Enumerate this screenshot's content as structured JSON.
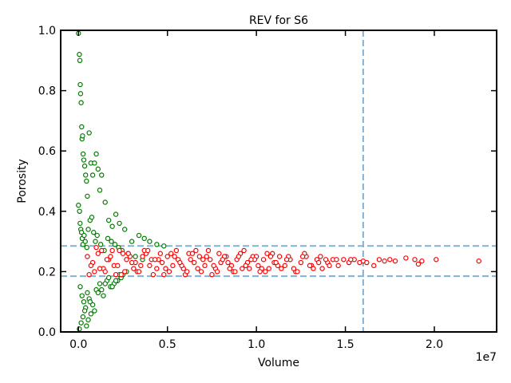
{
  "chart_data": {
    "type": "scatter",
    "title": "REV for S6",
    "xlabel": "Volume",
    "ylabel": "Porosity",
    "x_offset_label": "1e7",
    "x_scale": 10000000,
    "xlim": [
      -1000000,
      23500000
    ],
    "ylim": [
      0.0,
      1.0
    ],
    "xticks": [
      0.0,
      0.5,
      1.0,
      1.5,
      2.0
    ],
    "xtick_labels": [
      "0.0",
      "0.5",
      "1.0",
      "1.5",
      "2.0"
    ],
    "yticks": [
      0.0,
      0.2,
      0.4,
      0.6,
      0.8,
      1.0
    ],
    "ytick_labels": [
      "0.0",
      "0.2",
      "0.4",
      "0.6",
      "0.8",
      "1.0"
    ],
    "grid": false,
    "reference_lines": {
      "color": "#7fb3d5",
      "horizontal": [
        0.285,
        0.185
      ],
      "vertical": [
        16000000
      ]
    },
    "series": [
      {
        "color": "#007a00",
        "marker": "open-circle",
        "x": [
          0,
          50000,
          80000,
          100000,
          120000,
          150000,
          180000,
          200000,
          230000,
          260000,
          300000,
          350000,
          400000,
          450000,
          500000,
          600000,
          700000,
          800000,
          900000,
          1000000,
          1100000,
          1200000,
          1300000,
          1500000,
          1700000,
          1900000,
          2100000,
          2300000,
          2600000,
          3000000,
          3400000,
          3700000,
          4000000,
          4400000,
          4800000,
          0,
          60000,
          90000,
          130000,
          170000,
          210000,
          250000,
          320000,
          380000,
          470000,
          550000,
          650000,
          750000,
          850000,
          950000,
          1050000,
          1250000,
          1450000,
          1650000,
          1850000,
          2050000,
          2250000,
          2450000,
          2800000,
          3200000,
          3600000,
          100000,
          200000,
          300000,
          400000,
          500000,
          600000,
          700000,
          800000,
          1000000,
          1200000,
          1400000,
          1600000,
          1800000,
          2000000,
          2200000,
          2400000,
          50000,
          150000,
          250000,
          350000,
          450000,
          550000,
          650000,
          900000,
          1100000,
          1300000,
          1500000,
          1700000,
          1900000,
          2100000,
          2300000,
          2500000,
          2700000
        ],
        "y": [
          0.99,
          0.92,
          0.9,
          0.82,
          0.79,
          0.76,
          0.68,
          0.64,
          0.65,
          0.59,
          0.57,
          0.55,
          0.52,
          0.5,
          0.45,
          0.66,
          0.56,
          0.52,
          0.56,
          0.59,
          0.54,
          0.47,
          0.52,
          0.43,
          0.37,
          0.35,
          0.39,
          0.36,
          0.34,
          0.3,
          0.32,
          0.31,
          0.3,
          0.29,
          0.285,
          0.42,
          0.4,
          0.36,
          0.34,
          0.33,
          0.31,
          0.29,
          0.32,
          0.3,
          0.28,
          0.34,
          0.37,
          0.38,
          0.33,
          0.3,
          0.32,
          0.29,
          0.27,
          0.31,
          0.3,
          0.29,
          0.28,
          0.27,
          0.26,
          0.25,
          0.24,
          0.15,
          0.12,
          0.1,
          0.08,
          0.13,
          0.11,
          0.06,
          0.09,
          0.14,
          0.16,
          0.12,
          0.17,
          0.15,
          0.16,
          0.17,
          0.18,
          0.01,
          0.03,
          0.05,
          0.07,
          0.02,
          0.04,
          0.1,
          0.07,
          0.13,
          0.14,
          0.16,
          0.18,
          0.15,
          0.17,
          0.19,
          0.19,
          0.2
        ]
      },
      {
        "color": "#ff0000",
        "marker": "open-circle",
        "x": [
          500000,
          800000,
          1100000,
          1400000,
          1700000,
          2000000,
          2300000,
          2600000,
          2900000,
          3200000,
          3500000,
          3800000,
          4100000,
          4400000,
          4700000,
          5000000,
          5300000,
          5600000,
          5900000,
          6200000,
          6500000,
          6800000,
          7100000,
          7400000,
          7700000,
          8000000,
          8300000,
          8600000,
          8900000,
          9200000,
          9500000,
          9800000,
          10100000,
          10400000,
          10700000,
          11000000,
          11300000,
          11600000,
          11900000,
          12200000,
          12500000,
          12800000,
          13100000,
          13400000,
          13700000,
          14000000,
          14300000,
          14600000,
          14900000,
          15200000,
          15500000,
          15800000,
          16000000,
          16600000,
          16900000,
          17200000,
          17500000,
          17800000,
          18400000,
          18900000,
          19100000,
          19300000,
          20100000,
          22500000,
          600000,
          1000000,
          1500000,
          1900000,
          2400000,
          2800000,
          3300000,
          3700000,
          4200000,
          4600000,
          5100000,
          5500000,
          6000000,
          6400000,
          6900000,
          7300000,
          7800000,
          8200000,
          8700000,
          9100000,
          9600000,
          10000000,
          10500000,
          10900000,
          11400000,
          11800000,
          12300000,
          12700000,
          13200000,
          13600000,
          14100000,
          14500000,
          700000,
          1200000,
          1800000,
          2200000,
          2700000,
          3100000,
          3600000,
          4000000,
          4500000,
          4900000,
          5400000,
          5800000,
          6300000,
          6700000,
          7200000,
          7600000,
          8100000,
          8500000,
          9000000,
          9400000,
          9900000,
          10300000,
          10800000,
          11200000,
          11700000,
          12100000,
          12600000,
          13000000,
          13500000,
          13900000,
          15300000,
          16200000,
          900000,
          1300000,
          1600000,
          2100000,
          2500000,
          3000000,
          3400000,
          3900000,
          4300000,
          4800000,
          5200000,
          5700000,
          6100000,
          6600000,
          7000000,
          7500000,
          7900000,
          8400000,
          8800000,
          9300000,
          9700000,
          10200000,
          10600000,
          11100000
        ],
        "y": [
          0.25,
          0.23,
          0.26,
          0.21,
          0.24,
          0.22,
          0.27,
          0.2,
          0.25,
          0.23,
          0.22,
          0.26,
          0.24,
          0.21,
          0.23,
          0.25,
          0.22,
          0.24,
          0.21,
          0.26,
          0.23,
          0.25,
          0.22,
          0.24,
          0.21,
          0.23,
          0.25,
          0.22,
          0.24,
          0.21,
          0.23,
          0.25,
          0.22,
          0.24,
          0.21,
          0.23,
          0.25,
          0.22,
          0.24,
          0.2,
          0.23,
          0.25,
          0.22,
          0.24,
          0.21,
          0.23,
          0.24,
          0.22,
          0.24,
          0.23,
          0.24,
          0.23,
          0.235,
          0.22,
          0.24,
          0.235,
          0.24,
          0.235,
          0.245,
          0.24,
          0.225,
          0.235,
          0.24,
          0.235,
          0.19,
          0.28,
          0.2,
          0.27,
          0.19,
          0.26,
          0.2,
          0.27,
          0.19,
          0.26,
          0.2,
          0.27,
          0.19,
          0.26,
          0.2,
          0.27,
          0.2,
          0.25,
          0.2,
          0.26,
          0.21,
          0.25,
          0.2,
          0.26,
          0.21,
          0.25,
          0.2,
          0.26,
          0.21,
          0.25,
          0.22,
          0.24,
          0.22,
          0.21,
          0.25,
          0.22,
          0.24,
          0.21,
          0.25,
          0.22,
          0.24,
          0.21,
          0.25,
          0.22,
          0.24,
          0.21,
          0.25,
          0.22,
          0.24,
          0.21,
          0.25,
          0.22,
          0.24,
          0.21,
          0.25,
          0.22,
          0.24,
          0.21,
          0.25,
          0.22,
          0.23,
          0.24,
          0.24,
          0.23,
          0.2,
          0.27,
          0.24,
          0.19,
          0.26,
          0.23,
          0.2,
          0.27,
          0.24,
          0.19,
          0.26,
          0.23,
          0.2,
          0.27,
          0.24,
          0.19,
          0.26,
          0.23,
          0.2,
          0.27,
          0.24,
          0.2,
          0.26,
          0.23
        ]
      }
    ]
  }
}
